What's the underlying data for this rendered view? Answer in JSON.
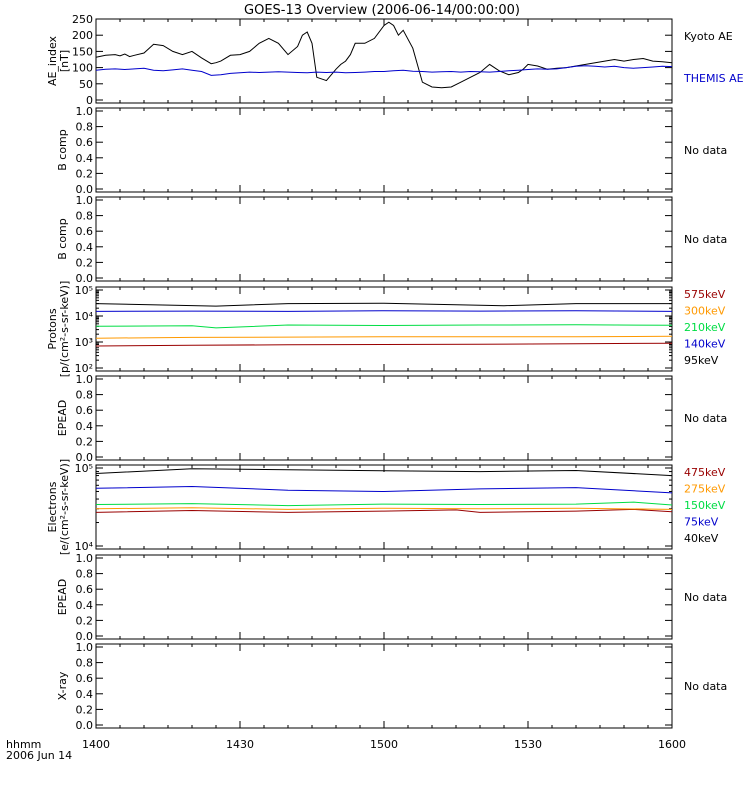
{
  "title": "GOES-13 Overview (2006-06-14/00:00:00)",
  "bottom_labels": {
    "row1": "hhmm",
    "row2": "2006 Jun 14"
  },
  "x_ticks": [
    "1400",
    "1430",
    "1500",
    "1530",
    "1600"
  ],
  "colors": {
    "black": "#000000",
    "blue": "#0000cc",
    "green": "#00dd44",
    "orange": "#ff9900",
    "red": "#990000"
  },
  "chart_data": [
    {
      "type": "line",
      "ylabel": [
        "AE_index",
        "[nT]"
      ],
      "ylim": [
        0,
        250
      ],
      "yticks": [
        "0",
        "50",
        "100",
        "150",
        "200",
        "250"
      ],
      "x_range_minutes": [
        0,
        120
      ],
      "series": [
        {
          "name": "Kyoto AE",
          "color": "#000000",
          "x": [
            0,
            2,
            4,
            5,
            6,
            7,
            8,
            10,
            12,
            14,
            16,
            18,
            20,
            22,
            24,
            25,
            26,
            28,
            30,
            32,
            34,
            36,
            38,
            40,
            42,
            43,
            44,
            45,
            46,
            48,
            50,
            51,
            52,
            53,
            54,
            56,
            58,
            60,
            61,
            62,
            63,
            64,
            66,
            68,
            70,
            72,
            74,
            76,
            78,
            80,
            82,
            84,
            86,
            88,
            89,
            90,
            92,
            94,
            96,
            98,
            100,
            102,
            104,
            106,
            108,
            110,
            112,
            114,
            116,
            118,
            120
          ],
          "y": [
            132,
            138,
            140,
            136,
            142,
            134,
            138,
            145,
            172,
            168,
            150,
            140,
            150,
            130,
            112,
            115,
            120,
            138,
            140,
            150,
            175,
            190,
            175,
            140,
            165,
            200,
            210,
            175,
            70,
            60,
            95,
            110,
            120,
            140,
            175,
            175,
            190,
            230,
            240,
            230,
            200,
            215,
            160,
            55,
            40,
            38,
            40,
            55,
            70,
            85,
            110,
            90,
            78,
            85,
            95,
            110,
            105,
            95,
            98,
            100,
            105,
            110,
            115,
            120,
            125,
            120,
            125,
            128,
            120,
            118,
            115
          ]
        },
        {
          "name": "THEMIS AE",
          "color": "#0000cc",
          "x": [
            0,
            2,
            4,
            6,
            8,
            10,
            12,
            14,
            16,
            18,
            20,
            22,
            24,
            26,
            28,
            30,
            32,
            34,
            36,
            38,
            40,
            42,
            44,
            46,
            48,
            50,
            52,
            54,
            56,
            58,
            60,
            62,
            64,
            66,
            68,
            70,
            72,
            74,
            76,
            78,
            80,
            82,
            84,
            86,
            88,
            90,
            92,
            94,
            96,
            98,
            100,
            102,
            104,
            106,
            108,
            110,
            112,
            114,
            116,
            118,
            120
          ],
          "y": [
            92,
            95,
            96,
            94,
            96,
            98,
            92,
            90,
            93,
            96,
            92,
            88,
            76,
            78,
            82,
            84,
            86,
            85,
            86,
            87,
            86,
            85,
            84,
            86,
            85,
            86,
            84,
            85,
            86,
            88,
            88,
            90,
            92,
            89,
            88,
            86,
            87,
            88,
            86,
            88,
            87,
            86,
            88,
            90,
            92,
            94,
            96,
            95,
            96,
            100,
            104,
            106,
            104,
            102,
            104,
            100,
            98,
            100,
            102,
            104,
            103
          ]
        }
      ]
    },
    {
      "type": "line",
      "ylabel": [
        "B comp"
      ],
      "ylim": [
        0,
        1
      ],
      "yticks": [
        "0.0",
        "0.2",
        "0.4",
        "0.6",
        "0.8",
        "1.0"
      ],
      "note": "No data"
    },
    {
      "type": "line",
      "ylabel": [
        "B comp"
      ],
      "ylim": [
        0,
        1
      ],
      "yticks": [
        "0.0",
        "0.2",
        "0.4",
        "0.6",
        "0.8",
        "1.0"
      ],
      "note": "No data"
    },
    {
      "type": "line",
      "log_scale": true,
      "ylabel": [
        "Protons",
        "[p/(cm²-s-sr-keV)]"
      ],
      "ylim": [
        100,
        100000
      ],
      "yticks": [
        "10²",
        "10³",
        "10⁴",
        "10⁵"
      ],
      "x_range_minutes": [
        0,
        120
      ],
      "series": [
        {
          "name": "575keV",
          "color": "#990000",
          "x": [
            0,
            20,
            40,
            60,
            80,
            100,
            120
          ],
          "y": [
            700,
            750,
            780,
            800,
            820,
            850,
            900
          ]
        },
        {
          "name": "300keV",
          "color": "#ff9900",
          "x": [
            0,
            20,
            40,
            60,
            80,
            100,
            120
          ],
          "y": [
            1400,
            1500,
            1550,
            1600,
            1580,
            1600,
            1650
          ]
        },
        {
          "name": "210keV",
          "color": "#00dd44",
          "x": [
            0,
            20,
            25,
            40,
            60,
            80,
            100,
            120
          ],
          "y": [
            4000,
            4200,
            3500,
            4500,
            4300,
            4500,
            4600,
            4400
          ]
        },
        {
          "name": "140keV",
          "color": "#0000cc",
          "x": [
            0,
            20,
            40,
            60,
            80,
            100,
            120
          ],
          "y": [
            15000,
            15500,
            15000,
            16000,
            15500,
            16000,
            15000
          ]
        },
        {
          "name": "95keV",
          "color": "#000000",
          "x": [
            0,
            25,
            40,
            60,
            85,
            100,
            120
          ],
          "y": [
            30000,
            24000,
            30000,
            31000,
            25000,
            30000,
            30000
          ]
        }
      ]
    },
    {
      "type": "line",
      "ylabel": [
        "EPEAD"
      ],
      "ylim": [
        0,
        1
      ],
      "yticks": [
        "0.0",
        "0.2",
        "0.4",
        "0.6",
        "0.8",
        "1.0"
      ],
      "note": "No data"
    },
    {
      "type": "line",
      "log_scale": true,
      "ylabel": [
        "Electrons",
        "[e/(cm²-s-sr-keV)]"
      ],
      "ylim": [
        10000,
        100000
      ],
      "yticks": [
        "10⁴",
        "10⁵"
      ],
      "x_range_minutes": [
        0,
        120
      ],
      "series": [
        {
          "name": "475keV",
          "color": "#990000",
          "x": [
            0,
            20,
            40,
            60,
            75,
            80,
            100,
            112,
            120
          ],
          "y": [
            27000,
            28500,
            27000,
            28000,
            29000,
            27000,
            28000,
            29500,
            27500
          ]
        },
        {
          "name": "275keV",
          "color": "#ff9900",
          "x": [
            0,
            20,
            40,
            60,
            80,
            100,
            120
          ],
          "y": [
            30000,
            31000,
            29500,
            30500,
            30000,
            30500,
            29500
          ]
        },
        {
          "name": "150keV",
          "color": "#00dd44",
          "x": [
            0,
            20,
            40,
            60,
            80,
            100,
            112,
            120
          ],
          "y": [
            34000,
            35000,
            33000,
            34500,
            34000,
            34500,
            36500,
            33500
          ]
        },
        {
          "name": "75keV",
          "color": "#0000cc",
          "x": [
            0,
            20,
            40,
            60,
            80,
            100,
            120
          ],
          "y": [
            55000,
            58000,
            52000,
            50000,
            54000,
            56000,
            48000
          ]
        },
        {
          "name": "40keV",
          "color": "#000000",
          "x": [
            0,
            20,
            40,
            60,
            80,
            100,
            120
          ],
          "y": [
            85000,
            98000,
            95000,
            92000,
            90000,
            93000,
            80000
          ]
        }
      ]
    },
    {
      "type": "line",
      "ylabel": [
        "EPEAD"
      ],
      "ylim": [
        0,
        1
      ],
      "yticks": [
        "0.0",
        "0.2",
        "0.4",
        "0.6",
        "0.8",
        "1.0"
      ],
      "note": "No data"
    },
    {
      "type": "line",
      "ylabel": [
        "X-ray"
      ],
      "ylim": [
        0,
        1
      ],
      "yticks": [
        "0.0",
        "0.2",
        "0.4",
        "0.6",
        "0.8",
        "1.0"
      ],
      "note": "No data"
    }
  ]
}
